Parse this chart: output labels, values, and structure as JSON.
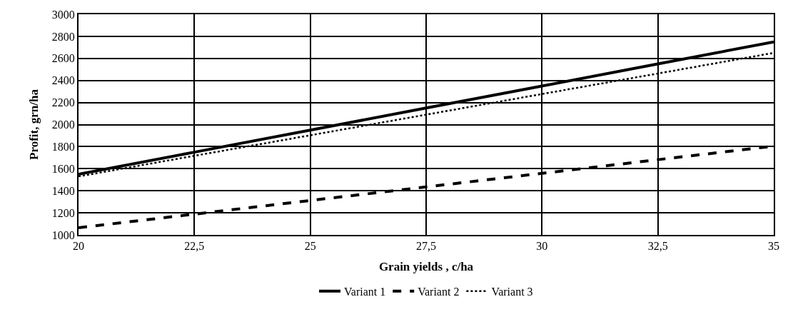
{
  "chart_data": {
    "type": "line",
    "xlabel": "Grain yields , c/ha",
    "ylabel": "Profit, grn/ha",
    "x": [
      20,
      22.5,
      25,
      27.5,
      30,
      32.5,
      35
    ],
    "series": [
      {
        "name": "Variant 1",
        "color": "#000000",
        "line_style": "solid",
        "values": [
          1550,
          1750,
          1950,
          2150,
          2350,
          2550,
          2750
        ]
      },
      {
        "name": "Variant 2",
        "color": "#000000",
        "line_style": "dashed",
        "values": [
          1065,
          1188,
          1312,
          1435,
          1558,
          1682,
          1805
        ]
      },
      {
        "name": "Variant 3",
        "color": "#000000",
        "line_style": "dotted",
        "values": [
          1530,
          1717,
          1903,
          2090,
          2277,
          2463,
          2650
        ]
      }
    ],
    "xlim": [
      20,
      35
    ],
    "xticks": [
      20,
      {
        "value": 22.5,
        "label": "22,5"
      },
      25,
      {
        "value": 27.5,
        "label": "27,5"
      },
      30,
      {
        "value": 32.5,
        "label": "32,5"
      },
      35
    ],
    "ylim": [
      1000,
      3000
    ],
    "yticks": [
      1000,
      1200,
      1400,
      1600,
      1800,
      2000,
      2200,
      2400,
      2600,
      2800,
      3000
    ],
    "grid": true,
    "legend": "bottom",
    "marker": "none"
  }
}
